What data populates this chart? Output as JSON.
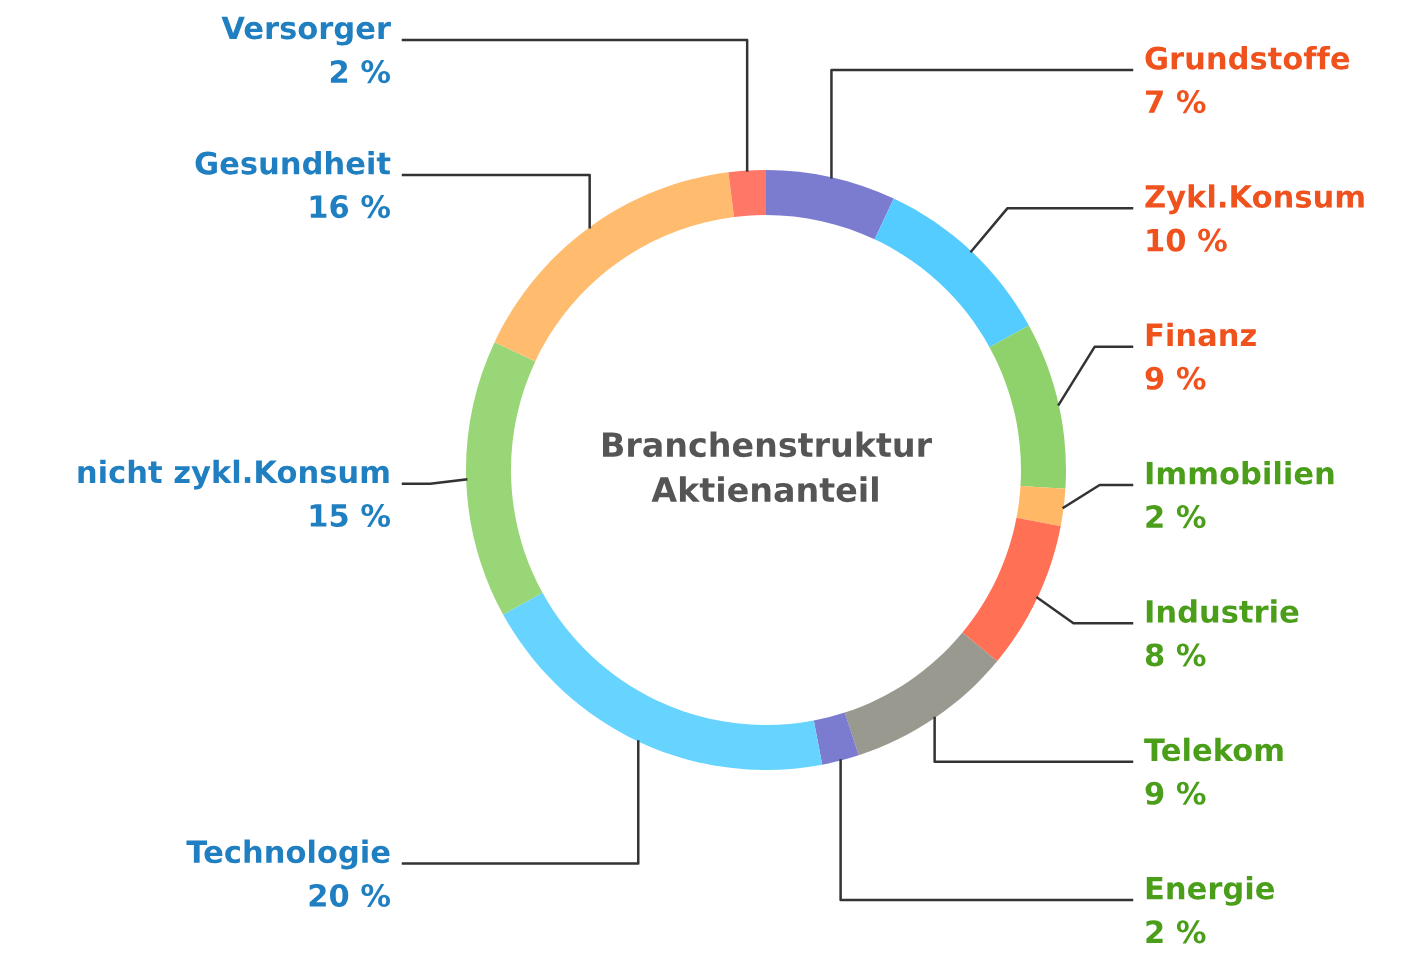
{
  "chart_data": {
    "type": "donut",
    "title": "Branchenstruktur\nAktienanteil",
    "categories": [
      "Grundstoffe",
      "Zykl.Konsum",
      "Finanz",
      "Immobilien",
      "Industrie",
      "Telekom",
      "Energie",
      "Technologie",
      "nicht zykl.Konsum",
      "Gesundheit",
      "Versorger"
    ],
    "values": [
      7,
      10,
      9,
      2,
      8,
      9,
      2,
      20,
      15,
      16,
      2
    ],
    "colors": [
      "#7b7bd0",
      "#55ccff",
      "#8fd16a",
      "#ffb866",
      "#ff7055",
      "#999990",
      "#7b7bd0",
      "#66d4ff",
      "#99d677",
      "#ffbb6e",
      "#ff7766"
    ],
    "value_labels": [
      "7 %",
      "10 %",
      "9 %",
      "2 %",
      "8 %",
      "9 %",
      "2 %",
      "20 %",
      "15 %",
      "16 %",
      "2 %"
    ],
    "legend": false
  }
}
